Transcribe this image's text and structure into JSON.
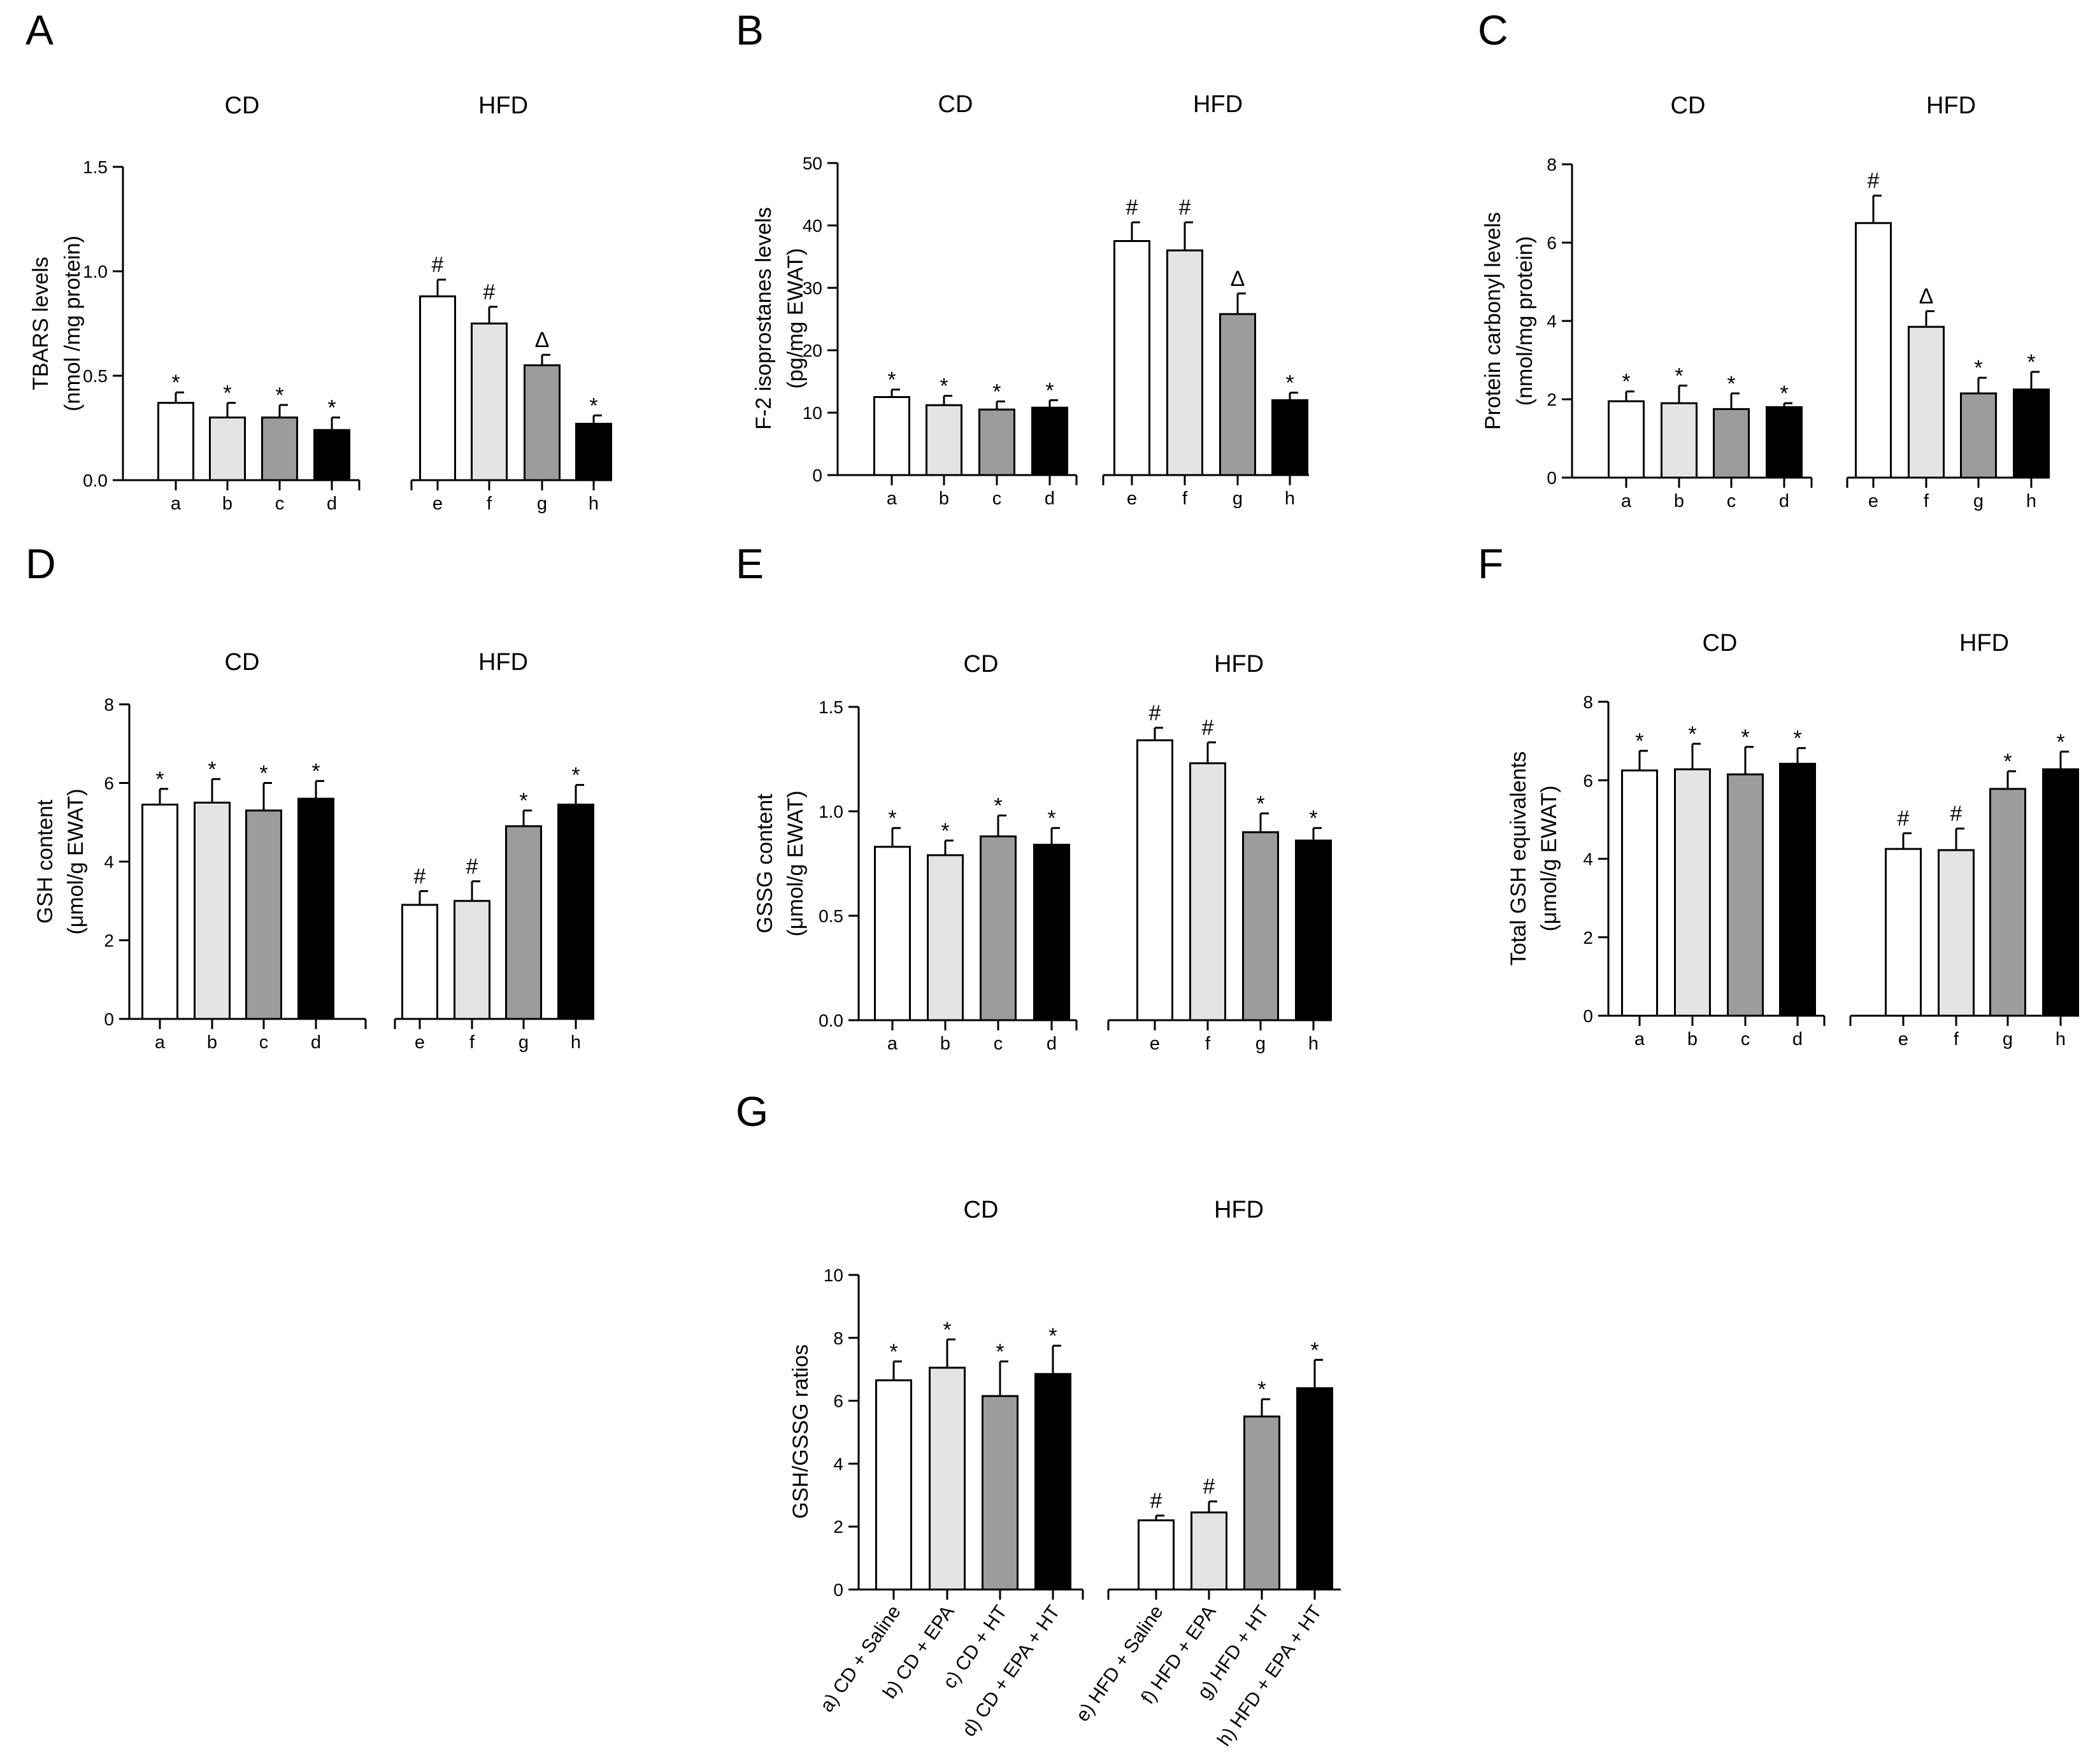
{
  "figure": {
    "colors": {
      "bar_fills": [
        "#ffffff",
        "#e4e4e4",
        "#9c9c9c",
        "#000000",
        "#ffffff",
        "#e4e4e4",
        "#9c9c9c",
        "#000000"
      ],
      "axis": "#000000"
    }
  },
  "chart_data": [
    {
      "id": "A",
      "panel": "A",
      "type": "bar",
      "groups": [
        "CD",
        "HFD"
      ],
      "categories": [
        "a",
        "b",
        "c",
        "d",
        "e",
        "f",
        "g",
        "h"
      ],
      "values": [
        0.37,
        0.3,
        0.3,
        0.24,
        0.88,
        0.75,
        0.55,
        0.27
      ],
      "errors": [
        0.05,
        0.07,
        0.06,
        0.06,
        0.08,
        0.08,
        0.05,
        0.04
      ],
      "marks": [
        "*",
        "*",
        "*",
        "*",
        "#",
        "#",
        "Δ",
        "*"
      ],
      "ylabel_lines": [
        "TBARS levels",
        "(nmol /mg protein)"
      ],
      "ylim": [
        0,
        1.5
      ],
      "yticks": [
        "0.0",
        "0.5",
        "1.0",
        "1.5"
      ],
      "legend": "none",
      "grid": false
    },
    {
      "id": "B",
      "panel": "B",
      "type": "bar",
      "groups": [
        "CD",
        "HFD"
      ],
      "categories": [
        "a",
        "b",
        "c",
        "d",
        "e",
        "f",
        "g",
        "h"
      ],
      "values": [
        12.5,
        11.2,
        10.5,
        10.8,
        37.5,
        36.0,
        25.8,
        12.0
      ],
      "errors": [
        1.2,
        1.5,
        1.3,
        1.2,
        3.0,
        4.5,
        3.3,
        1.2
      ],
      "marks": [
        "*",
        "*",
        "*",
        "*",
        "#",
        "#",
        "Δ",
        "*"
      ],
      "ylabel_lines": [
        "F-2 isoprostanes levels",
        "(pg/mg EWAT)"
      ],
      "ylim": [
        0,
        50
      ],
      "yticks": [
        "0",
        "10",
        "20",
        "30",
        "40",
        "50"
      ],
      "legend": "none",
      "grid": false
    },
    {
      "id": "C",
      "panel": "C",
      "type": "bar",
      "groups": [
        "CD",
        "HFD"
      ],
      "categories": [
        "a",
        "b",
        "c",
        "d",
        "e",
        "f",
        "g",
        "h"
      ],
      "values": [
        1.95,
        1.9,
        1.75,
        1.8,
        6.5,
        3.85,
        2.15,
        2.25
      ],
      "errors": [
        0.25,
        0.45,
        0.4,
        0.1,
        0.7,
        0.4,
        0.4,
        0.45
      ],
      "marks": [
        "*",
        "*",
        "*",
        "*",
        "#",
        "Δ",
        "*",
        "*"
      ],
      "ylabel_lines": [
        "Protein carbonyl levels",
        "(nmol/mg protein)"
      ],
      "ylim": [
        0,
        8
      ],
      "yticks": [
        "0",
        "2",
        "4",
        "6",
        "8"
      ],
      "legend": "none",
      "grid": false
    },
    {
      "id": "D",
      "panel": "D",
      "type": "bar",
      "groups": [
        "CD",
        "HFD"
      ],
      "categories": [
        "a",
        "b",
        "c",
        "d",
        "e",
        "f",
        "g",
        "h"
      ],
      "values": [
        5.45,
        5.5,
        5.3,
        5.6,
        2.9,
        3.0,
        4.9,
        5.45
      ],
      "errors": [
        0.4,
        0.6,
        0.7,
        0.45,
        0.35,
        0.5,
        0.4,
        0.5
      ],
      "marks": [
        "*",
        "*",
        "*",
        "*",
        "#",
        "#",
        "*",
        "*"
      ],
      "ylabel_lines": [
        "GSH content",
        "(μmol/g EWAT)"
      ],
      "ylim": [
        0,
        8
      ],
      "yticks": [
        "0",
        "2",
        "4",
        "6",
        "8"
      ],
      "legend": "none",
      "grid": false
    },
    {
      "id": "E",
      "panel": "E",
      "type": "bar",
      "groups": [
        "CD",
        "HFD"
      ],
      "categories": [
        "a",
        "b",
        "c",
        "d",
        "e",
        "f",
        "g",
        "h"
      ],
      "values": [
        0.83,
        0.79,
        0.88,
        0.84,
        1.34,
        1.23,
        0.9,
        0.86
      ],
      "errors": [
        0.09,
        0.07,
        0.1,
        0.08,
        0.06,
        0.1,
        0.09,
        0.06
      ],
      "marks": [
        "*",
        "*",
        "*",
        "*",
        "#",
        "#",
        "*",
        "*"
      ],
      "ylabel_lines": [
        "GSSG content",
        "(μmol/g EWAT)"
      ],
      "ylim": [
        0,
        1.5
      ],
      "yticks": [
        "0.0",
        "0.5",
        "1.0",
        "1.5"
      ],
      "legend": "none",
      "grid": false
    },
    {
      "id": "F",
      "panel": "F",
      "type": "bar",
      "groups": [
        "CD",
        "HFD"
      ],
      "categories": [
        "a",
        "b",
        "c",
        "d",
        "e",
        "f",
        "g",
        "h"
      ],
      "values": [
        6.25,
        6.28,
        6.15,
        6.42,
        4.25,
        4.22,
        5.78,
        6.28
      ],
      "errors": [
        0.5,
        0.65,
        0.7,
        0.4,
        0.4,
        0.55,
        0.45,
        0.45
      ],
      "marks": [
        "*",
        "*",
        "*",
        "*",
        "#",
        "#",
        "*",
        "*"
      ],
      "ylabel_lines": [
        "Total GSH equivalents",
        "(μmol/g EWAT)"
      ],
      "ylim": [
        0,
        8
      ],
      "yticks": [
        "0",
        "2",
        "4",
        "6",
        "8"
      ],
      "legend": "none",
      "grid": false
    },
    {
      "id": "G",
      "panel": "G",
      "type": "bar",
      "groups": [
        "CD",
        "HFD"
      ],
      "categories": [
        "a) CD + Saline",
        "b) CD + EPA",
        "c) CD + HT",
        "d) CD + EPA + HT",
        "e) HFD + Saline",
        "f) HFD + EPA",
        "g) HFD + HT",
        "h) HFD + EPA + HT"
      ],
      "values": [
        6.65,
        7.05,
        6.15,
        6.85,
        2.2,
        2.45,
        5.5,
        6.4
      ],
      "errors": [
        0.6,
        0.9,
        1.1,
        0.9,
        0.15,
        0.35,
        0.55,
        0.9
      ],
      "marks": [
        "*",
        "*",
        "*",
        "*",
        "#",
        "#",
        "*",
        "*"
      ],
      "ylabel_lines": [
        "GSH/GSSG ratios"
      ],
      "ylim": [
        0,
        10
      ],
      "yticks": [
        "0",
        "2",
        "4",
        "6",
        "8",
        "10"
      ],
      "legend": "none",
      "grid": false
    }
  ]
}
